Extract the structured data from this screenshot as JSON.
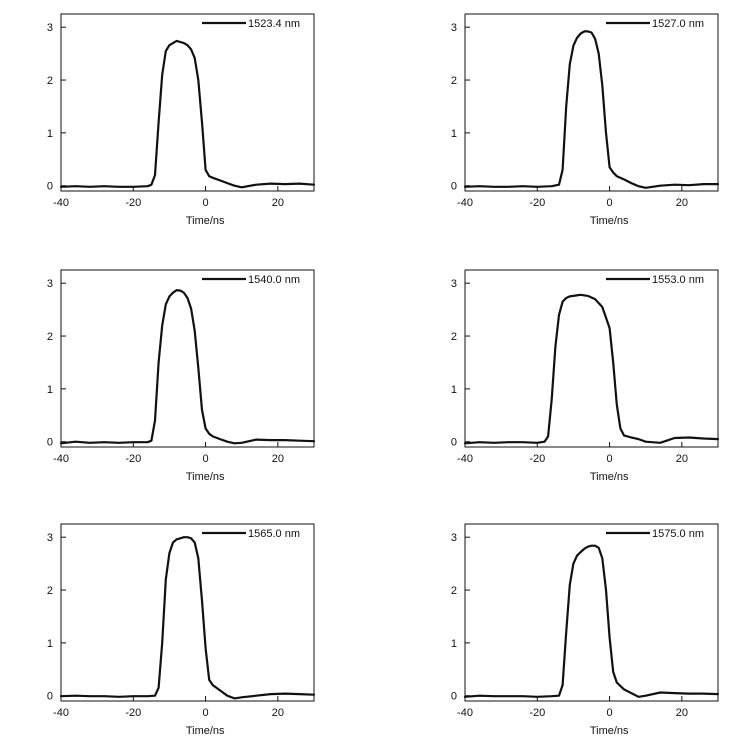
{
  "chart_data": [
    {
      "type": "line",
      "xlabel": "Time/ns",
      "xlim": [
        -40,
        30
      ],
      "ylim": [
        -0.1,
        3.25
      ],
      "xticks": [
        "-40",
        "-20",
        "0",
        "20"
      ],
      "yticks": [
        "0",
        "1",
        "2",
        "3"
      ],
      "legend_position": "top-right",
      "series": [
        {
          "name": "1523.4 nm",
          "x": [
            -40,
            -36,
            -32,
            -28,
            -24,
            -20,
            -16,
            -15,
            -14,
            -13,
            -12,
            -11,
            -10,
            -9,
            -8,
            -7,
            -6,
            -5,
            -4,
            -3,
            -2,
            -1,
            0,
            1,
            2,
            4,
            6,
            8,
            10,
            14,
            18,
            22,
            26,
            30
          ],
          "y": [
            -0.02,
            -0.01,
            -0.02,
            -0.01,
            -0.02,
            -0.02,
            -0.01,
            0.02,
            0.2,
            1.2,
            2.1,
            2.55,
            2.66,
            2.7,
            2.74,
            2.72,
            2.7,
            2.66,
            2.58,
            2.42,
            2.0,
            1.2,
            0.3,
            0.18,
            0.15,
            0.1,
            0.05,
            0.0,
            -0.03,
            0.02,
            0.04,
            0.03,
            0.04,
            0.02
          ]
        },
        {
          "name": "1527.0 nm",
          "x": [
            -40,
            -36,
            -32,
            -28,
            -24,
            -20,
            -16,
            -14,
            -13,
            -12,
            -11,
            -10,
            -9,
            -8,
            -7,
            -6,
            -5,
            -4,
            -3,
            -2,
            -1,
            0,
            1,
            2,
            4,
            6,
            8,
            10,
            14,
            18,
            22,
            26,
            30
          ],
          "y": [
            -0.02,
            -0.01,
            -0.02,
            -0.02,
            -0.01,
            -0.02,
            -0.01,
            0.02,
            0.3,
            1.5,
            2.3,
            2.65,
            2.8,
            2.88,
            2.92,
            2.92,
            2.9,
            2.78,
            2.5,
            1.9,
            1.0,
            0.35,
            0.25,
            0.18,
            0.12,
            0.05,
            -0.01,
            -0.04,
            0.0,
            0.02,
            0.01,
            0.03,
            0.03
          ]
        },
        {
          "name": "1540.0 nm",
          "x": [
            -40,
            -36,
            -32,
            -28,
            -24,
            -20,
            -16,
            -15,
            -14,
            -13,
            -12,
            -11,
            -10,
            -9,
            -8,
            -7,
            -6,
            -5,
            -4,
            -3,
            -2,
            -1,
            0,
            1,
            2,
            4,
            6,
            8,
            10,
            14,
            18,
            22,
            26,
            30
          ],
          "y": [
            -0.03,
            0.0,
            -0.02,
            -0.01,
            -0.02,
            -0.01,
            -0.01,
            0.02,
            0.4,
            1.5,
            2.2,
            2.6,
            2.75,
            2.82,
            2.87,
            2.86,
            2.82,
            2.72,
            2.52,
            2.1,
            1.4,
            0.6,
            0.25,
            0.15,
            0.1,
            0.05,
            0.0,
            -0.03,
            -0.02,
            0.04,
            0.03,
            0.03,
            0.02,
            0.01
          ]
        },
        {
          "name": "1553.0 nm",
          "x": [
            -40,
            -36,
            -32,
            -28,
            -24,
            -20,
            -18,
            -17,
            -16,
            -15,
            -14,
            -13,
            -12,
            -11,
            -10,
            -8,
            -6,
            -4,
            -2,
            0,
            1,
            2,
            3,
            4,
            6,
            8,
            10,
            14,
            18,
            22,
            26,
            30
          ],
          "y": [
            -0.03,
            -0.01,
            -0.02,
            -0.01,
            -0.01,
            -0.02,
            0.0,
            0.1,
            0.8,
            1.8,
            2.4,
            2.65,
            2.72,
            2.75,
            2.76,
            2.78,
            2.76,
            2.7,
            2.55,
            2.15,
            1.5,
            0.7,
            0.25,
            0.12,
            0.08,
            0.05,
            0.0,
            -0.02,
            0.07,
            0.08,
            0.06,
            0.05
          ]
        },
        {
          "name": "1565.0 nm",
          "x": [
            -40,
            -36,
            -32,
            -28,
            -24,
            -20,
            -16,
            -14,
            -13,
            -12,
            -11,
            -10,
            -9,
            -8,
            -7,
            -6,
            -5,
            -4,
            -3,
            -2,
            -1,
            0,
            1,
            2,
            4,
            6,
            8,
            10,
            14,
            18,
            22,
            26,
            30
          ],
          "y": [
            -0.01,
            0.0,
            -0.01,
            -0.01,
            -0.02,
            -0.01,
            -0.01,
            0.0,
            0.15,
            1.0,
            2.2,
            2.7,
            2.9,
            2.96,
            2.98,
            3.0,
            3.0,
            2.98,
            2.9,
            2.6,
            1.8,
            0.9,
            0.3,
            0.2,
            0.1,
            0.0,
            -0.05,
            -0.03,
            0.0,
            0.03,
            0.04,
            0.03,
            0.02
          ]
        },
        {
          "name": "1575.0 nm",
          "x": [
            -40,
            -36,
            -32,
            -28,
            -24,
            -20,
            -16,
            -14,
            -13,
            -12,
            -11,
            -10,
            -9,
            -8,
            -7,
            -6,
            -5,
            -4,
            -3,
            -2,
            -1,
            0,
            1,
            2,
            4,
            6,
            8,
            10,
            14,
            18,
            22,
            26,
            30
          ],
          "y": [
            -0.02,
            0.0,
            -0.01,
            -0.01,
            -0.01,
            -0.02,
            -0.01,
            0.0,
            0.2,
            1.2,
            2.1,
            2.5,
            2.65,
            2.72,
            2.78,
            2.82,
            2.84,
            2.84,
            2.8,
            2.6,
            2.0,
            1.1,
            0.45,
            0.25,
            0.12,
            0.05,
            -0.02,
            0.0,
            0.06,
            0.05,
            0.04,
            0.04,
            0.03
          ]
        }
      ]
    }
  ]
}
